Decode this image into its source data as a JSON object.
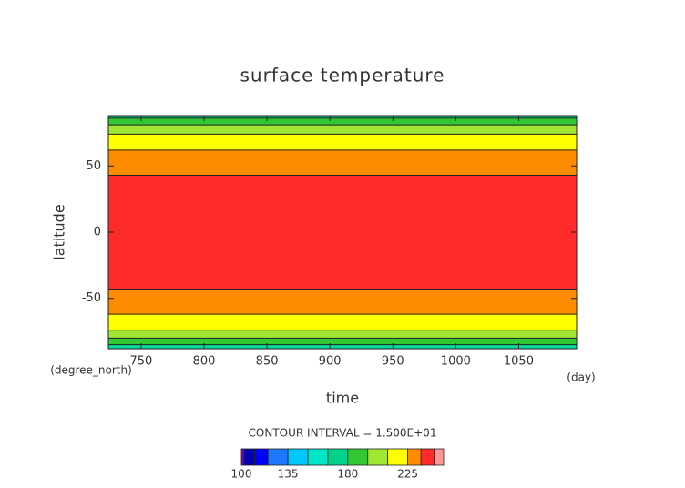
{
  "chart_data": {
    "type": "contour",
    "title": "surface temperature",
    "x_label": "time",
    "x_unit": "(day)",
    "y_label": "latitude",
    "y_unit": "(degree_north)",
    "xlim": [
      724,
      1096
    ],
    "ylim": [
      -88,
      88
    ],
    "xticks": [
      750,
      800,
      850,
      900,
      950,
      1000,
      1050
    ],
    "yticks": [
      -50,
      0,
      50
    ],
    "contour_lines": [
      -85,
      -80,
      -74,
      -62,
      -43,
      43,
      62,
      74,
      81,
      86
    ],
    "band_colors": [
      "#00dca0",
      "#32c832",
      "#a0e632",
      "#ffff00",
      "#ff8c00",
      "#ff2a2a",
      "#ff8c00",
      "#ffff00",
      "#a0e632",
      "#32c832",
      "#00d28c"
    ],
    "contour_interval_text": "CONTOUR INTERVAL = 1.500E+01",
    "colorbar": {
      "levels": [
        100,
        102,
        110,
        120,
        135,
        150,
        165,
        180,
        195,
        210,
        225,
        235,
        245,
        252
      ],
      "colors": [
        "#7800b4",
        "#0000b4",
        "#0000ff",
        "#1e78ff",
        "#00c8ff",
        "#00e6c8",
        "#00d28c",
        "#32c832",
        "#a0e632",
        "#ffff00",
        "#ff8c00",
        "#ff2a2a",
        "#ff9696"
      ],
      "ticks": [
        100,
        135,
        180,
        225
      ]
    }
  }
}
